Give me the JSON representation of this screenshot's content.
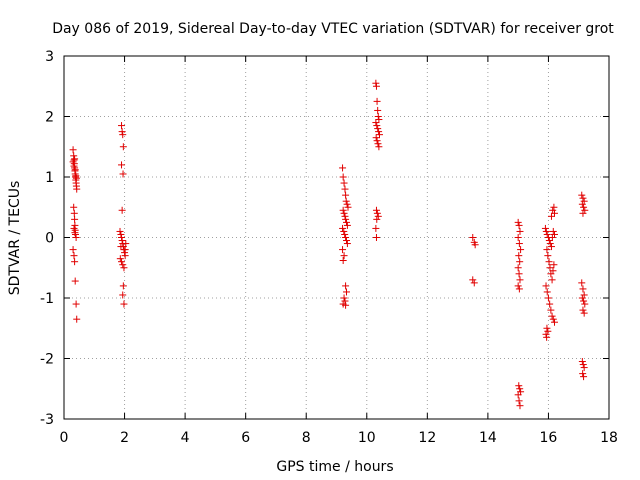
{
  "chart_data": {
    "type": "scatter",
    "title": "Day 086 of 2019, Sidereal Day-to-day VTEC variation (SDTVAR) for receiver grot",
    "xlabel": "GPS time / hours",
    "ylabel": "SDTVAR / TECUs",
    "xlim": [
      0,
      18
    ],
    "ylim": [
      -3,
      3
    ],
    "xticks": [
      "0",
      "2",
      "4",
      "6",
      "8",
      "10",
      "12",
      "14",
      "16",
      "18"
    ],
    "yticks": [
      "-3",
      "-2",
      "-1",
      "0",
      "1",
      "2",
      "3"
    ],
    "grid": true,
    "marker": "+",
    "color": "#e00000",
    "series": [
      {
        "name": "SDTVAR",
        "points": [
          [
            0.3,
            1.45
          ],
          [
            0.32,
            1.35
          ],
          [
            0.33,
            1.28
          ],
          [
            0.34,
            1.22
          ],
          [
            0.35,
            1.15
          ],
          [
            0.36,
            1.1
          ],
          [
            0.37,
            1.05
          ],
          [
            0.38,
            1.0
          ],
          [
            0.39,
            0.95
          ],
          [
            0.4,
            0.9
          ],
          [
            0.41,
            0.85
          ],
          [
            0.42,
            0.8
          ],
          [
            0.3,
            1.25
          ],
          [
            0.33,
            1.18
          ],
          [
            0.35,
            1.3
          ],
          [
            0.37,
            1.12
          ],
          [
            0.39,
            1.02
          ],
          [
            0.41,
            0.98
          ],
          [
            0.32,
            0.5
          ],
          [
            0.34,
            0.4
          ],
          [
            0.35,
            0.3
          ],
          [
            0.36,
            0.2
          ],
          [
            0.37,
            0.12
          ],
          [
            0.38,
            0.05
          ],
          [
            0.4,
            0.0
          ],
          [
            0.33,
            0.15
          ],
          [
            0.36,
            0.08
          ],
          [
            0.3,
            -0.2
          ],
          [
            0.33,
            -0.3
          ],
          [
            0.35,
            -0.4
          ],
          [
            0.37,
            -0.72
          ],
          [
            0.4,
            -1.1
          ],
          [
            0.42,
            -1.35
          ],
          [
            1.9,
            1.85
          ],
          [
            1.92,
            1.75
          ],
          [
            1.94,
            1.7
          ],
          [
            1.96,
            1.5
          ],
          [
            1.9,
            1.2
          ],
          [
            1.95,
            1.05
          ],
          [
            1.92,
            0.45
          ],
          [
            1.85,
            0.1
          ],
          [
            1.88,
            0.05
          ],
          [
            1.9,
            0.0
          ],
          [
            1.92,
            -0.05
          ],
          [
            1.94,
            -0.1
          ],
          [
            1.96,
            -0.15
          ],
          [
            1.98,
            -0.2
          ],
          [
            2.0,
            -0.25
          ],
          [
            2.02,
            -0.3
          ],
          [
            1.86,
            -0.35
          ],
          [
            1.9,
            -0.4
          ],
          [
            1.94,
            -0.45
          ],
          [
            1.98,
            -0.5
          ],
          [
            2.02,
            -0.2
          ],
          [
            2.04,
            -0.1
          ],
          [
            1.88,
            -0.15
          ],
          [
            1.96,
            -0.8
          ],
          [
            1.94,
            -0.95
          ],
          [
            1.98,
            -1.1
          ],
          [
            9.2,
            1.15
          ],
          [
            9.22,
            1.0
          ],
          [
            9.25,
            0.9
          ],
          [
            9.28,
            0.8
          ],
          [
            9.3,
            0.7
          ],
          [
            9.32,
            0.6
          ],
          [
            9.35,
            0.55
          ],
          [
            9.38,
            0.5
          ],
          [
            9.22,
            0.45
          ],
          [
            9.25,
            0.4
          ],
          [
            9.28,
            0.35
          ],
          [
            9.3,
            0.3
          ],
          [
            9.33,
            0.25
          ],
          [
            9.36,
            0.2
          ],
          [
            9.2,
            0.15
          ],
          [
            9.24,
            0.1
          ],
          [
            9.27,
            0.05
          ],
          [
            9.3,
            0.0
          ],
          [
            9.33,
            -0.05
          ],
          [
            9.36,
            -0.1
          ],
          [
            9.2,
            -0.2
          ],
          [
            9.25,
            -0.3
          ],
          [
            9.22,
            -0.38
          ],
          [
            9.3,
            -0.8
          ],
          [
            9.33,
            -0.9
          ],
          [
            9.25,
            -1.0
          ],
          [
            9.28,
            -1.05
          ],
          [
            9.22,
            -1.1
          ],
          [
            9.3,
            -1.12
          ],
          [
            10.3,
            2.55
          ],
          [
            10.32,
            2.5
          ],
          [
            10.34,
            2.25
          ],
          [
            10.36,
            2.1
          ],
          [
            10.38,
            2.0
          ],
          [
            10.4,
            1.95
          ],
          [
            10.3,
            1.9
          ],
          [
            10.33,
            1.85
          ],
          [
            10.36,
            1.8
          ],
          [
            10.39,
            1.75
          ],
          [
            10.42,
            1.7
          ],
          [
            10.31,
            1.65
          ],
          [
            10.34,
            1.6
          ],
          [
            10.37,
            1.55
          ],
          [
            10.4,
            1.5
          ],
          [
            10.32,
            0.45
          ],
          [
            10.35,
            0.4
          ],
          [
            10.38,
            0.35
          ],
          [
            10.33,
            0.3
          ],
          [
            10.3,
            0.15
          ],
          [
            10.32,
            0.0
          ],
          [
            13.5,
            0.0
          ],
          [
            13.55,
            -0.08
          ],
          [
            13.58,
            -0.12
          ],
          [
            13.5,
            -0.7
          ],
          [
            13.55,
            -0.75
          ],
          [
            15.0,
            0.25
          ],
          [
            15.03,
            0.2
          ],
          [
            15.06,
            0.1
          ],
          [
            15.0,
            0.0
          ],
          [
            15.04,
            -0.1
          ],
          [
            15.08,
            -0.2
          ],
          [
            15.02,
            -0.3
          ],
          [
            15.05,
            -0.4
          ],
          [
            15.0,
            -0.5
          ],
          [
            15.03,
            -0.6
          ],
          [
            15.06,
            -0.7
          ],
          [
            15.0,
            -0.8
          ],
          [
            15.04,
            -0.85
          ],
          [
            15.02,
            -2.45
          ],
          [
            15.05,
            -2.5
          ],
          [
            15.08,
            -2.55
          ],
          [
            15.0,
            -2.6
          ],
          [
            15.03,
            -2.7
          ],
          [
            15.06,
            -2.78
          ],
          [
            15.9,
            0.15
          ],
          [
            15.93,
            0.1
          ],
          [
            15.96,
            0.05
          ],
          [
            16.0,
            0.0
          ],
          [
            16.03,
            -0.05
          ],
          [
            16.06,
            -0.1
          ],
          [
            16.1,
            -0.15
          ],
          [
            16.13,
            0.0
          ],
          [
            16.16,
            0.1
          ],
          [
            16.2,
            0.05
          ],
          [
            15.95,
            -0.2
          ],
          [
            15.98,
            -0.3
          ],
          [
            16.02,
            -0.4
          ],
          [
            16.05,
            -0.5
          ],
          [
            16.08,
            -0.6
          ],
          [
            16.12,
            -0.7
          ],
          [
            16.15,
            -0.55
          ],
          [
            16.18,
            -0.45
          ],
          [
            15.92,
            -0.8
          ],
          [
            15.96,
            -0.9
          ],
          [
            16.0,
            -1.0
          ],
          [
            16.04,
            -1.1
          ],
          [
            16.08,
            -1.2
          ],
          [
            16.12,
            -1.3
          ],
          [
            16.16,
            -1.35
          ],
          [
            16.2,
            -1.4
          ],
          [
            15.95,
            -1.5
          ],
          [
            15.98,
            -1.55
          ],
          [
            15.92,
            -1.6
          ],
          [
            15.94,
            -1.65
          ],
          [
            16.1,
            0.35
          ],
          [
            16.14,
            0.45
          ],
          [
            16.18,
            0.5
          ],
          [
            16.2,
            0.4
          ],
          [
            17.1,
            0.7
          ],
          [
            17.14,
            0.65
          ],
          [
            17.18,
            0.6
          ],
          [
            17.12,
            0.55
          ],
          [
            17.16,
            0.5
          ],
          [
            17.2,
            0.45
          ],
          [
            17.14,
            0.4
          ],
          [
            17.1,
            -0.75
          ],
          [
            17.14,
            -0.85
          ],
          [
            17.18,
            -0.95
          ],
          [
            17.12,
            -1.0
          ],
          [
            17.16,
            -1.05
          ],
          [
            17.2,
            -1.1
          ],
          [
            17.14,
            -1.2
          ],
          [
            17.18,
            -1.25
          ],
          [
            17.12,
            -2.05
          ],
          [
            17.15,
            -2.1
          ],
          [
            17.18,
            -2.15
          ],
          [
            17.13,
            -2.25
          ],
          [
            17.16,
            -2.3
          ]
        ]
      }
    ]
  }
}
